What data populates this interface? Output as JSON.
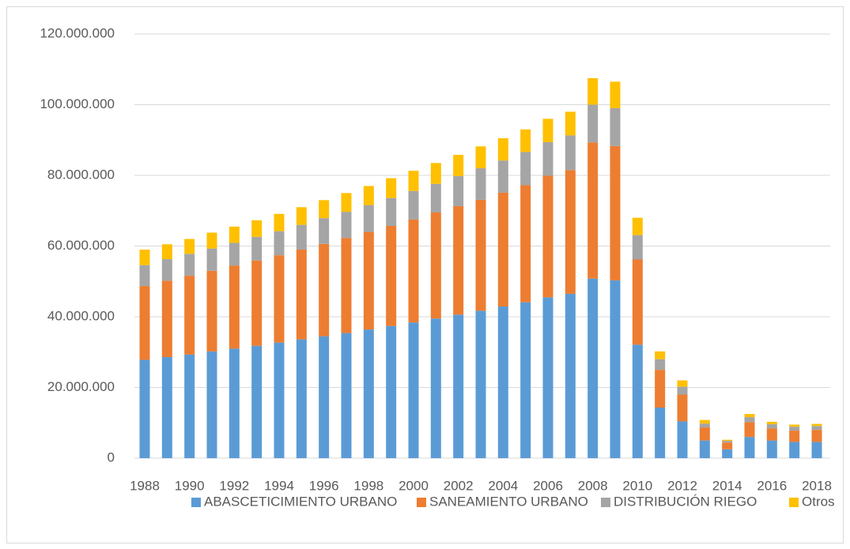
{
  "chart_data": {
    "type": "stacked_bar",
    "categories": [
      "1988",
      null,
      "1990",
      null,
      "1992",
      null,
      "1994",
      null,
      "1996",
      null,
      "1998",
      null,
      "2000",
      null,
      "2002",
      null,
      "2004",
      null,
      "2006",
      null,
      "2008",
      null,
      "2010",
      null,
      "2012",
      null,
      "2014",
      null,
      "2016",
      null,
      "2018"
    ],
    "series": [
      {
        "name": "ABASCETICIMIENTO URBANO",
        "color": "#5b9bd5",
        "values": [
          27800000,
          28600000,
          29300000,
          30200000,
          31000000,
          31800000,
          32700000,
          33600000,
          34500000,
          35400000,
          36400000,
          37400000,
          38400000,
          39500000,
          40600000,
          41700000,
          42900000,
          44100000,
          45500000,
          46500000,
          50800000,
          50300000,
          32100000,
          14300000,
          10400000,
          5000000,
          2500000,
          6000000,
          5000000,
          4600000,
          4600000
        ]
      },
      {
        "name": "SANEAMIENTO URBANO",
        "color": "#ed7d31",
        "values": [
          20900000,
          21600000,
          22300000,
          22800000,
          23500000,
          24100000,
          24700000,
          25400000,
          26100000,
          26900000,
          27600000,
          28300000,
          29100000,
          30000000,
          30700000,
          31400000,
          32200000,
          33100000,
          34400000,
          35000000,
          38500000,
          38000000,
          24100000,
          10700000,
          7600000,
          3700000,
          1900000,
          4200000,
          3400000,
          3200000,
          3400000
        ]
      },
      {
        "name": "DISTRIBUCIÓN RIEGO",
        "color": "#a5a5a5",
        "values": [
          5900000,
          6100000,
          6200000,
          6300000,
          6400000,
          6700000,
          6800000,
          7000000,
          7300000,
          7400000,
          7600000,
          7900000,
          8100000,
          8100000,
          8500000,
          8900000,
          9100000,
          9400000,
          9500000,
          9800000,
          10700000,
          10700000,
          6900000,
          3000000,
          2200000,
          1100000,
          500000,
          1400000,
          1200000,
          1100000,
          1100000
        ]
      },
      {
        "name": "Otros",
        "color": "#ffc000",
        "values": [
          4400000,
          4200000,
          4200000,
          4500000,
          4600000,
          4700000,
          4900000,
          5000000,
          5100000,
          5300000,
          5400000,
          5600000,
          5700000,
          5900000,
          6000000,
          6200000,
          6300000,
          6400000,
          6600000,
          6700000,
          7500000,
          7500000,
          4900000,
          2200000,
          1800000,
          1000000,
          300000,
          900000,
          700000,
          600000,
          600000
        ]
      }
    ],
    "ylim": [
      0,
      120000000
    ],
    "yticks": [
      0,
      {
        "value": 20000000,
        "label": "20.000.000"
      },
      {
        "value": 40000000,
        "label": "40.000.000"
      },
      {
        "value": 60000000,
        "label": "60.000.000"
      },
      {
        "value": 80000000,
        "label": "80.000.000"
      },
      {
        "value": 100000000,
        "label": "100.000.000"
      },
      {
        "value": 120000000,
        "label": "120.000.000"
      }
    ],
    "grid": true,
    "legend": "bottom"
  }
}
